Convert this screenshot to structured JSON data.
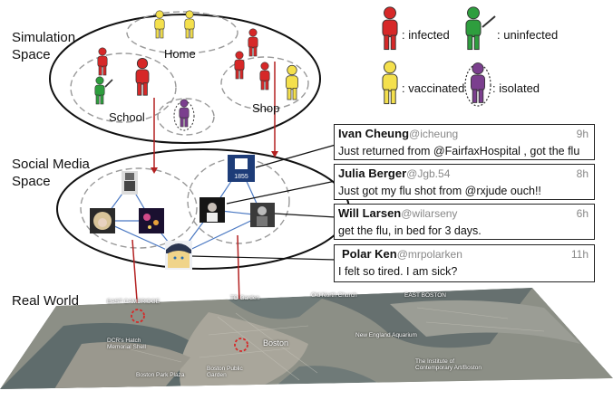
{
  "sections": {
    "simulation_line1": "Simulation",
    "simulation_line2": "Space",
    "social_line1": "Social Media",
    "social_line2": "Space",
    "real_world": "Real World"
  },
  "places": {
    "home": "Home",
    "school": "School",
    "shop": "Shop"
  },
  "legend": {
    "infected": ": infected",
    "uninfected": ": uninfected",
    "vaccinated": ": vaccinated",
    "isolated": ":  isolated"
  },
  "colors": {
    "infected": "#d62828",
    "uninfected": "#2e9e3e",
    "vaccinated": "#f4e04d",
    "isolated": "#7b3f8e",
    "link": "#b32020",
    "social_edge": "#4a78c2"
  },
  "tweets": [
    {
      "name": "Ivan Cheung",
      "handle": "@icheung",
      "time": "9h",
      "text": "Just returned from @FairfaxHospital , got the flu"
    },
    {
      "name": "Julia Berger",
      "handle": "@Jgb.54",
      "time": "8h",
      "text": "Just got my flu shot from @rxjude ouch!!"
    },
    {
      "name": "Will Larsen",
      "handle": "@wilarseny",
      "time": "6h",
      "text": "get the flu, in bed for 3 days."
    },
    {
      "name": "Polar Ken",
      "handle": "@mrpolarken",
      "time": "11h",
      "text": "I felt so tired. I am sick?"
    }
  ],
  "avatar_badge": "1855",
  "map_labels": {
    "l1": "EAST CAMBRIDGE",
    "l2": "TD Garden",
    "l3": "Old North Church",
    "l4": "EAST BOSTON",
    "l5": "DCR's Hatch Memorial Shell",
    "l6": "Boston",
    "l7": "New England Aquarium",
    "l8": "Boston Public Garden",
    "l9": "The Institute of Contemporary Art/Boston",
    "l10": "Boston Park Plaza"
  }
}
